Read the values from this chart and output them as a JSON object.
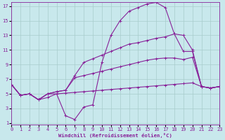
{
  "xlabel": "Windchill (Refroidissement éolien,°C)",
  "bg_color": "#c8e8ec",
  "line_color": "#882299",
  "grid_color": "#a8cccc",
  "xmin": 0,
  "xmax": 23,
  "ymin": 1,
  "ymax": 17,
  "yticks": [
    1,
    3,
    5,
    7,
    9,
    11,
    13,
    15,
    17
  ],
  "xticks": [
    0,
    1,
    2,
    3,
    4,
    5,
    6,
    7,
    8,
    9,
    10,
    11,
    12,
    13,
    14,
    15,
    16,
    17,
    18,
    19,
    20,
    21,
    22,
    23
  ],
  "lines": [
    {
      "x": [
        0,
        1,
        2,
        3,
        4,
        5,
        6,
        7,
        8,
        9,
        10,
        11,
        12,
        13,
        14,
        15,
        16,
        17,
        18,
        19,
        20,
        21,
        22,
        23
      ],
      "y": [
        6.3,
        4.8,
        5.0,
        4.2,
        4.5,
        5.0,
        2.0,
        1.5,
        3.2,
        3.5,
        9.3,
        13.0,
        15.0,
        16.3,
        16.8,
        17.3,
        17.5,
        16.8,
        13.2,
        13.0,
        11.0,
        6.0,
        5.8,
        6.0
      ]
    },
    {
      "x": [
        0,
        1,
        2,
        3,
        4,
        5,
        6,
        7,
        8,
        9,
        10,
        11,
        12,
        13,
        14,
        15,
        16,
        17,
        18,
        19,
        20,
        21,
        22,
        23
      ],
      "y": [
        6.3,
        4.8,
        5.0,
        4.2,
        5.0,
        5.3,
        5.5,
        7.5,
        9.3,
        9.8,
        10.3,
        10.8,
        11.3,
        11.8,
        12.0,
        12.3,
        12.6,
        12.8,
        13.2,
        10.8,
        10.8,
        6.0,
        5.8,
        6.0
      ]
    },
    {
      "x": [
        0,
        1,
        2,
        3,
        4,
        5,
        6,
        7,
        8,
        9,
        10,
        11,
        12,
        13,
        14,
        15,
        16,
        17,
        18,
        19,
        20,
        21,
        22,
        23
      ],
      "y": [
        6.3,
        4.8,
        5.0,
        4.2,
        5.0,
        5.3,
        5.5,
        7.2,
        7.5,
        7.8,
        8.1,
        8.4,
        8.7,
        9.0,
        9.3,
        9.6,
        9.8,
        9.9,
        9.9,
        9.7,
        10.0,
        6.0,
        5.8,
        6.0
      ]
    },
    {
      "x": [
        0,
        1,
        2,
        3,
        4,
        5,
        6,
        7,
        8,
        9,
        10,
        11,
        12,
        13,
        14,
        15,
        16,
        17,
        18,
        19,
        20,
        21,
        22,
        23
      ],
      "y": [
        6.3,
        4.8,
        5.0,
        4.2,
        5.0,
        5.0,
        5.1,
        5.2,
        5.3,
        5.4,
        5.5,
        5.6,
        5.7,
        5.8,
        5.9,
        6.0,
        6.1,
        6.2,
        6.3,
        6.4,
        6.5,
        6.0,
        5.8,
        6.0
      ]
    }
  ]
}
